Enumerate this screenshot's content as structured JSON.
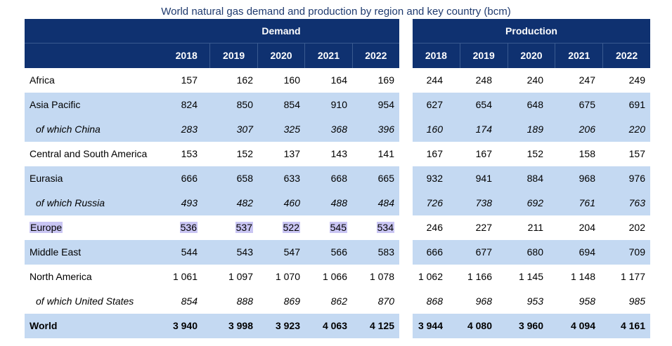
{
  "title": "World natural gas demand and production by region and key country (bcm)",
  "groups": {
    "demand": "Demand",
    "production": "Production"
  },
  "years": [
    "2018",
    "2019",
    "2020",
    "2021",
    "2022"
  ],
  "colors": {
    "header": "#0f3170",
    "shaded": "#c4d9f2",
    "highlight": "#c9c5f3"
  },
  "rows": [
    {
      "label": "Africa",
      "style": "plain",
      "demand": [
        "157",
        "162",
        "160",
        "164",
        "169"
      ],
      "production": [
        "244",
        "248",
        "240",
        "247",
        "249"
      ]
    },
    {
      "label": "Asia Pacific",
      "style": "shaded",
      "demand": [
        "824",
        "850",
        "854",
        "910",
        "954"
      ],
      "production": [
        "627",
        "654",
        "648",
        "675",
        "691"
      ]
    },
    {
      "label": "of which China",
      "style": "shaded sub",
      "demand": [
        "283",
        "307",
        "325",
        "368",
        "396"
      ],
      "production": [
        "160",
        "174",
        "189",
        "206",
        "220"
      ]
    },
    {
      "label": "Central and South America",
      "style": "plain",
      "demand": [
        "153",
        "152",
        "137",
        "143",
        "141"
      ],
      "production": [
        "167",
        "167",
        "152",
        "158",
        "157"
      ]
    },
    {
      "label": "Eurasia",
      "style": "shaded",
      "demand": [
        "666",
        "658",
        "633",
        "668",
        "665"
      ],
      "production": [
        "932",
        "941",
        "884",
        "968",
        "976"
      ]
    },
    {
      "label": "of which Russia",
      "style": "shaded sub",
      "demand": [
        "493",
        "482",
        "460",
        "488",
        "484"
      ],
      "production": [
        "726",
        "738",
        "692",
        "761",
        "763"
      ]
    },
    {
      "label": "Europe",
      "style": "plain",
      "highlight": true,
      "demand": [
        "536",
        "537",
        "522",
        "545",
        "534"
      ],
      "production": [
        "246",
        "227",
        "211",
        "204",
        "202"
      ]
    },
    {
      "label": "Middle East",
      "style": "shaded",
      "demand": [
        "544",
        "543",
        "547",
        "566",
        "583"
      ],
      "production": [
        "666",
        "677",
        "680",
        "694",
        "709"
      ]
    },
    {
      "label": "North America",
      "style": "plain",
      "demand": [
        "1 061",
        "1 097",
        "1 070",
        "1 066",
        "1 078"
      ],
      "production": [
        "1 062",
        "1 166",
        "1 145",
        "1 148",
        "1 177"
      ]
    },
    {
      "label": "of which United States",
      "style": "plain sub",
      "demand": [
        "854",
        "888",
        "869",
        "862",
        "870"
      ],
      "production": [
        "868",
        "968",
        "953",
        "958",
        "985"
      ]
    },
    {
      "label": "World",
      "style": "shaded total",
      "demand": [
        "3 940",
        "3 998",
        "3 923",
        "4 063",
        "4 125"
      ],
      "production": [
        "3 944",
        "4 080",
        "3 960",
        "4 094",
        "4 161"
      ]
    }
  ]
}
